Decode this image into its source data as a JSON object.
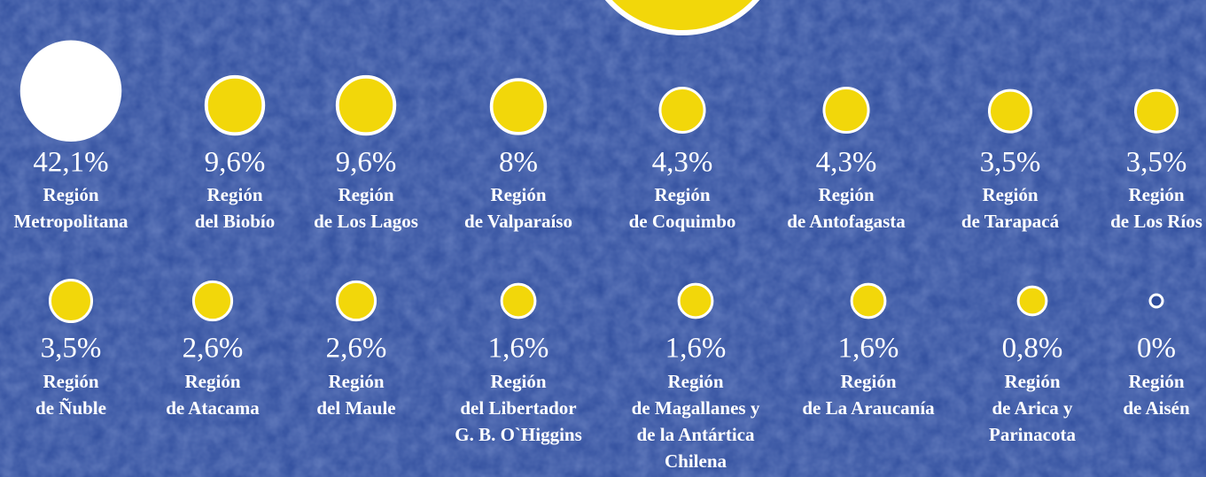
{
  "chart_data": {
    "type": "bubble",
    "categories": [
      [
        "Región",
        "Metropolitana"
      ],
      [
        "Región",
        "del Biobío"
      ],
      [
        "Región",
        "de Los Lagos"
      ],
      [
        "Región",
        "de Valparaíso"
      ],
      [
        "Región",
        "de Coquimbo"
      ],
      [
        "Región",
        "de Antofagasta"
      ],
      [
        "Región",
        "de Tarapacá"
      ],
      [
        "Región",
        "de Los Ríos"
      ],
      [
        "Región",
        "de Ñuble"
      ],
      [
        "Región",
        "de Atacama"
      ],
      [
        "Región",
        "del Maule"
      ],
      [
        "Región",
        "del Libertador",
        "G. B. O`Higgins"
      ],
      [
        "Región",
        "de Magallanes y",
        "de la Antártica",
        "Chilena"
      ],
      [
        "Región",
        "de La Araucanía"
      ],
      [
        "Región",
        "de Arica y",
        "Parinacota"
      ],
      [
        "Región",
        "de Aisén"
      ]
    ],
    "values": [
      42.1,
      9.6,
      9.6,
      8,
      4.3,
      4.3,
      3.5,
      3.5,
      3.5,
      2.6,
      2.6,
      1.6,
      1.6,
      1.6,
      0.8,
      0
    ],
    "value_labels": [
      "42,1%",
      "9,6%",
      "9,6%",
      "8%",
      "4,3%",
      "4,3%",
      "3,5%",
      "3,5%",
      "3,5%",
      "2,6%",
      "2,6%",
      "1,6%",
      "1,6%",
      "1,6%",
      "0,8%",
      "0%"
    ],
    "colors": [
      "#ffffff",
      "#f2d70a",
      "#f2d70a",
      "#f2d70a",
      "#f2d70a",
      "#f2d70a",
      "#f2d70a",
      "#f2d70a",
      "#f2d70a",
      "#f2d70a",
      "#f2d70a",
      "#f2d70a",
      "#f2d70a",
      "#f2d70a",
      "#f2d70a",
      "#2e4c9c"
    ]
  }
}
